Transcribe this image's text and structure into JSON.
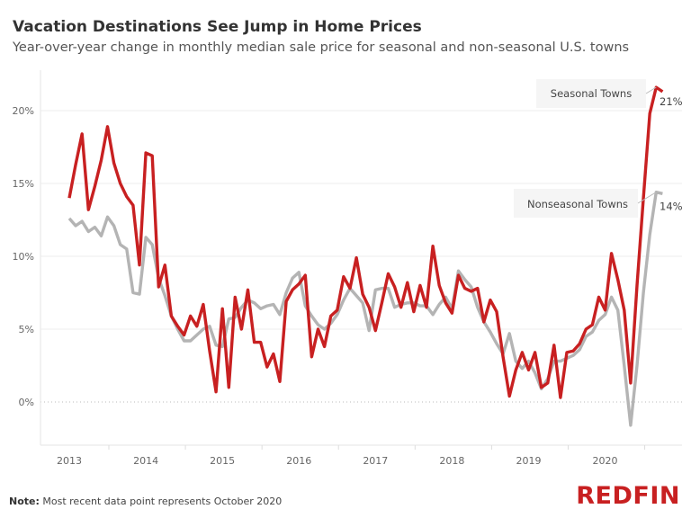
{
  "title": "Vacation Destinations See Jump in Home Prices",
  "subtitle": "Year-over-year change in monthly median sale price for seasonal and non-seasonal U.S. towns",
  "note_label": "Note:",
  "note_text": " Most recent data point represents October 2020",
  "logo": "REDFIN",
  "chart_data": {
    "type": "line",
    "title": "Vacation Destinations See Jump in Home Prices",
    "xlabel": "",
    "ylabel": "",
    "x_start": "2013-01",
    "x_end": "2020-10",
    "x_ticks": [
      "2013",
      "2014",
      "2015",
      "2016",
      "2017",
      "2018",
      "2019",
      "2020"
    ],
    "y_ticks": [
      "0%",
      "5%",
      "10%",
      "15%",
      "20%"
    ],
    "ylim": [
      -3,
      23
    ],
    "grid": true,
    "series": [
      {
        "name": "Seasonal Towns",
        "color": "#c82021",
        "end_label": "21%",
        "values": [
          14.0,
          16.3,
          18.4,
          13.2,
          14.8,
          16.6,
          18.9,
          16.4,
          15.0,
          14.1,
          13.5,
          9.4,
          17.1,
          16.9,
          7.9,
          9.4,
          5.9,
          5.2,
          4.6,
          5.9,
          5.2,
          6.7,
          3.5,
          0.7,
          6.4,
          1.0,
          7.2,
          5.0,
          7.7,
          4.1,
          4.1,
          2.4,
          3.3,
          1.4,
          6.9,
          7.7,
          8.1,
          8.7,
          3.1,
          5.0,
          3.8,
          5.9,
          6.3,
          8.6,
          7.8,
          9.9,
          7.4,
          6.5,
          4.9,
          6.8,
          8.8,
          7.9,
          6.5,
          8.2,
          6.2,
          8.0,
          6.5,
          10.7,
          8.0,
          6.8,
          6.1,
          8.7,
          7.8,
          7.6,
          7.8,
          5.5,
          7.0,
          6.2,
          3.1,
          0.4,
          2.2,
          3.4,
          2.2,
          3.4,
          1.0,
          1.3,
          3.9,
          0.3,
          3.4,
          3.5,
          4.0,
          5.0,
          5.3,
          7.2,
          6.3,
          10.2,
          8.4,
          6.3,
          1.3,
          8.0,
          14.0,
          19.8,
          21.6,
          21.3
        ]
      },
      {
        "name": "Nonseasonal Towns",
        "color": "#b4b4b4",
        "end_label": "14%",
        "values": [
          12.6,
          12.1,
          12.4,
          11.7,
          12.0,
          11.4,
          12.7,
          12.1,
          10.8,
          10.5,
          7.5,
          7.4,
          11.3,
          10.8,
          8.5,
          7.3,
          5.9,
          5.0,
          4.2,
          4.2,
          4.6,
          5.0,
          5.2,
          3.9,
          3.8,
          5.7,
          5.8,
          6.5,
          7.0,
          6.8,
          6.4,
          6.6,
          6.7,
          6.0,
          7.5,
          8.5,
          8.9,
          6.6,
          5.9,
          5.3,
          5.0,
          5.4,
          6.0,
          7.0,
          7.8,
          7.3,
          6.8,
          4.9,
          7.7,
          7.8,
          7.8,
          6.5,
          6.7,
          6.8,
          6.8,
          6.6,
          6.6,
          6.0,
          6.7,
          7.2,
          6.4,
          9.0,
          8.4,
          7.9,
          6.5,
          5.5,
          4.8,
          4.0,
          3.3,
          4.7,
          2.8,
          2.3,
          2.8,
          2.0,
          0.9,
          1.6,
          2.8,
          2.8,
          3.0,
          3.2,
          3.6,
          4.5,
          4.8,
          5.6,
          6.0,
          7.2,
          6.3,
          2.5,
          -1.6,
          2.5,
          7.5,
          11.5,
          14.4,
          14.3
        ]
      }
    ]
  }
}
